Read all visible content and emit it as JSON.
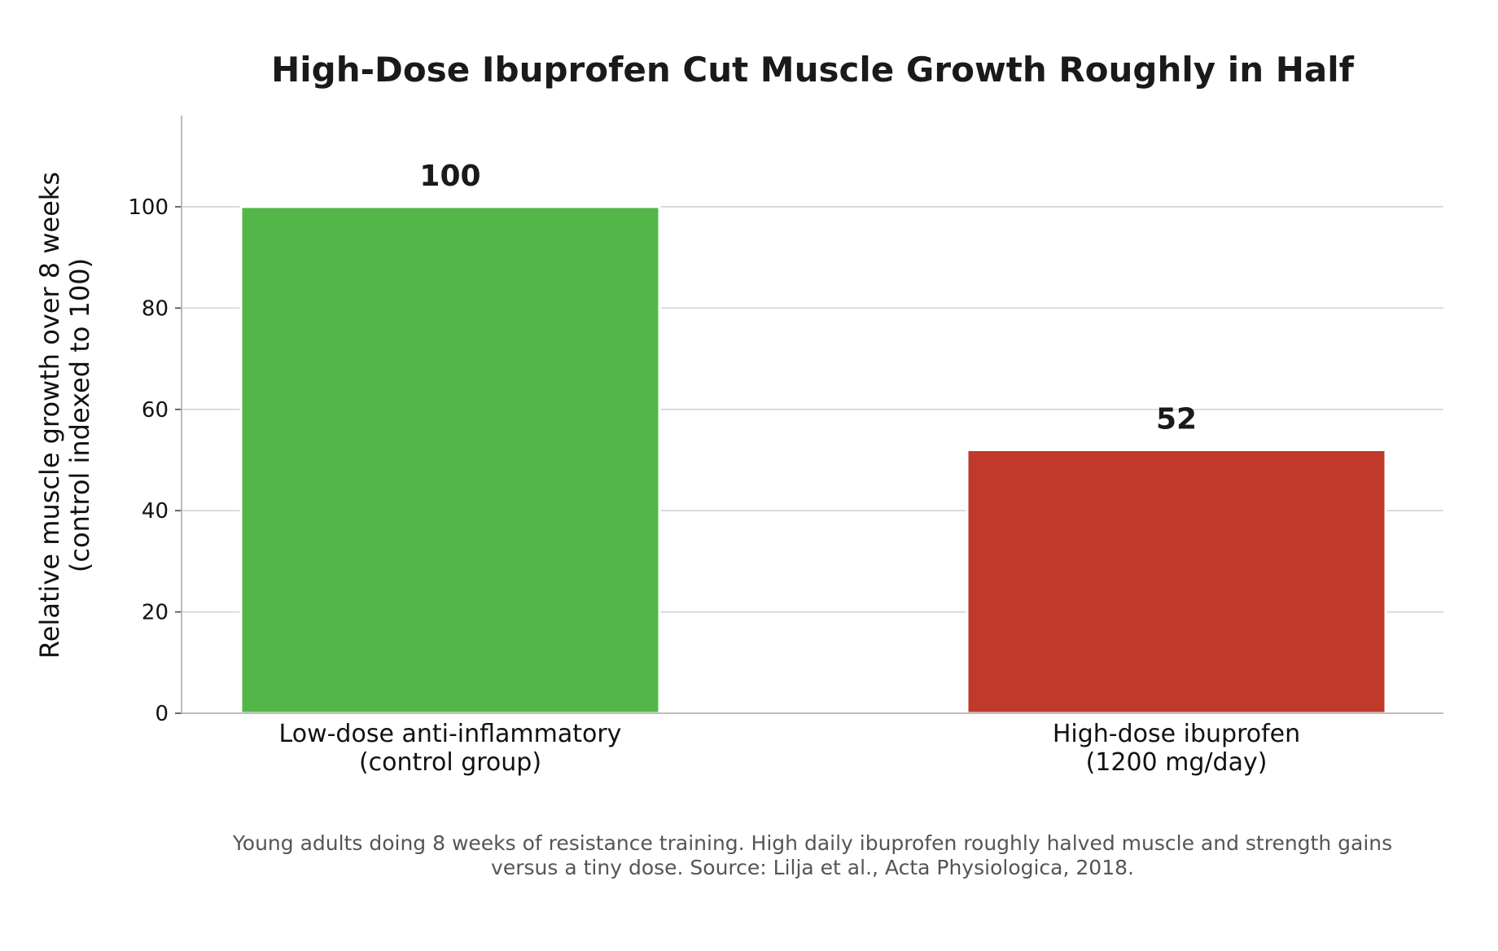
{
  "chart_data": {
    "type": "bar",
    "title": "High-Dose Ibuprofen Cut Muscle Growth Roughly in Half",
    "ylabel_lines": [
      "Relative muscle growth over 8 weeks",
      "(control indexed to 100)"
    ],
    "xlabel": "",
    "ylim": [
      0,
      118
    ],
    "yticks": [
      0,
      20,
      40,
      60,
      80,
      100
    ],
    "grid": true,
    "categories": [
      [
        "Low-dose anti-inflammatory",
        "(control group)"
      ],
      [
        "High-dose ibuprofen",
        "(1200 mg/day)"
      ]
    ],
    "values": [
      100,
      52
    ],
    "value_labels": [
      "100",
      "52"
    ],
    "colors": [
      "#52b748",
      "#c0392b"
    ],
    "caption_lines": [
      "Young adults doing 8 weeks of resistance training. High daily ibuprofen roughly halved muscle and strength gains",
      "versus a tiny dose. Source: Lilja et al., Acta Physiologica, 2018."
    ]
  }
}
